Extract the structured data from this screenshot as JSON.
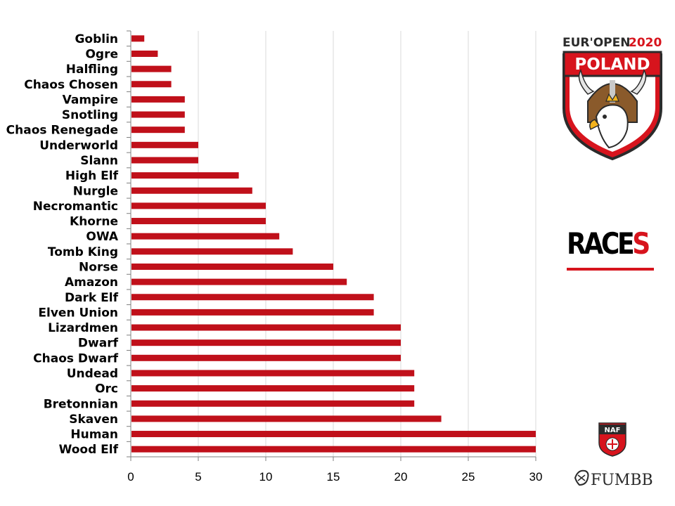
{
  "chart_data": {
    "type": "bar",
    "orientation": "horizontal",
    "categories": [
      "Goblin",
      "Ogre",
      "Halfling",
      "Chaos Chosen",
      "Vampire",
      "Snotling",
      "Chaos Renegade",
      "Underworld",
      "Slann",
      "High Elf",
      "Nurgle",
      "Necromantic",
      "Khorne",
      "OWA",
      "Tomb King",
      "Norse",
      "Amazon",
      "Dark Elf",
      "Elven Union",
      "Lizardmen",
      "Dwarf",
      "Chaos Dwarf",
      "Undead",
      "Orc",
      "Bretonnian",
      "Skaven",
      "Human",
      "Wood Elf"
    ],
    "values": [
      1,
      2,
      3,
      3,
      4,
      4,
      4,
      5,
      5,
      8,
      9,
      10,
      10,
      11,
      12,
      15,
      16,
      18,
      18,
      20,
      20,
      20,
      21,
      21,
      21,
      23,
      30,
      30
    ],
    "xlim": [
      0,
      30
    ],
    "xticks": [
      "0",
      "5",
      "10",
      "15",
      "20",
      "25",
      "30"
    ],
    "grid": true,
    "bar_color": "#c0101a"
  },
  "side": {
    "races_main": "RACE",
    "races_last": "S",
    "accent_color": "#d7141d"
  },
  "logo": {
    "top_text": "EUR'OPEN",
    "year": "2020",
    "banner": "POLAND"
  },
  "naf_logo": {
    "text": "NAF"
  },
  "fumbbl_logo": {
    "text": "FUMBBL"
  }
}
